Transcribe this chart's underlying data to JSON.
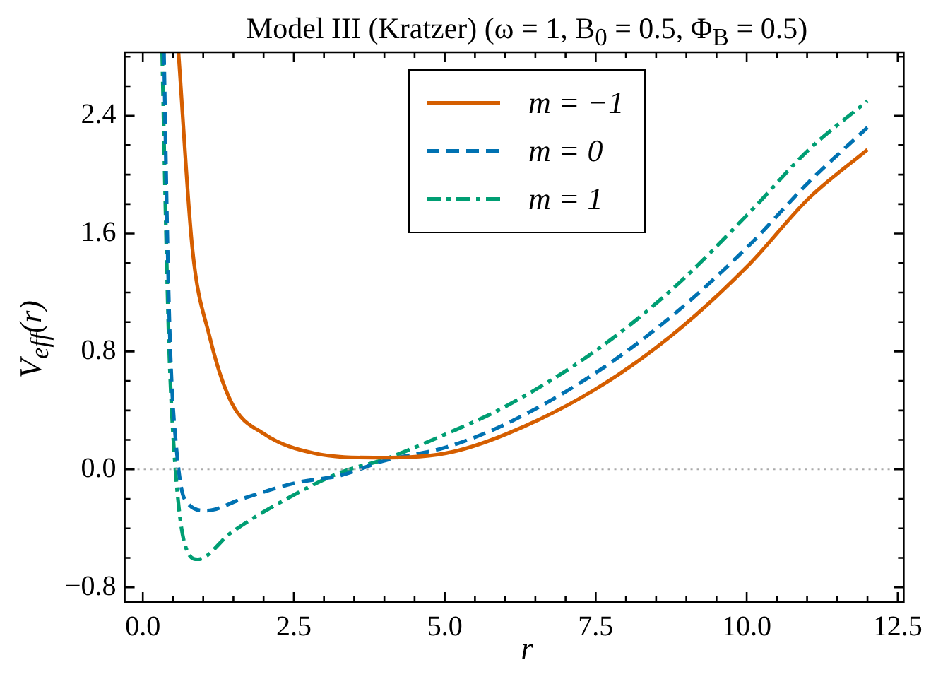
{
  "chart_data": {
    "type": "line",
    "title": "Model III (Kratzer) (ω = 1, B$_{0}$ = 0.5, Φ$_{B}$ = 0.5)",
    "xlabel": "r",
    "ylabel": "V$_{eff}$(r)",
    "xlim": [
      -0.3,
      12.6
    ],
    "ylim": [
      -0.9,
      2.83
    ],
    "xticks": [
      {
        "value": 0,
        "label": "0.0"
      },
      {
        "value": 0.5,
        "label": null
      },
      {
        "value": 1,
        "label": null
      },
      {
        "value": 1.5,
        "label": null
      },
      {
        "value": 2,
        "label": null
      },
      {
        "value": 2.5,
        "label": "2.5"
      },
      {
        "value": 3,
        "label": null
      },
      {
        "value": 3.5,
        "label": null
      },
      {
        "value": 4,
        "label": null
      },
      {
        "value": 4.5,
        "label": null
      },
      {
        "value": 5,
        "label": "5.0"
      },
      {
        "value": 5.5,
        "label": null
      },
      {
        "value": 6,
        "label": null
      },
      {
        "value": 6.5,
        "label": null
      },
      {
        "value": 7,
        "label": null
      },
      {
        "value": 7.5,
        "label": "7.5"
      },
      {
        "value": 8,
        "label": null
      },
      {
        "value": 8.5,
        "label": null
      },
      {
        "value": 9,
        "label": null
      },
      {
        "value": 9.5,
        "label": null
      },
      {
        "value": 10,
        "label": "10.0"
      },
      {
        "value": 10.5,
        "label": null
      },
      {
        "value": 11,
        "label": null
      },
      {
        "value": 11.5,
        "label": null
      },
      {
        "value": 12,
        "label": null
      },
      {
        "value": 12.5,
        "label": "12.5"
      }
    ],
    "yticks": [
      {
        "value": -0.8,
        "label": "−0.8"
      },
      {
        "value": -0.6,
        "label": null
      },
      {
        "value": -0.4,
        "label": null
      },
      {
        "value": -0.2,
        "label": null
      },
      {
        "value": 0,
        "label": "0.0"
      },
      {
        "value": 0.2,
        "label": null
      },
      {
        "value": 0.4,
        "label": null
      },
      {
        "value": 0.6,
        "label": null
      },
      {
        "value": 0.8,
        "label": "0.8"
      },
      {
        "value": 1,
        "label": null
      },
      {
        "value": 1.2,
        "label": null
      },
      {
        "value": 1.4,
        "label": null
      },
      {
        "value": 1.6,
        "label": "1.6"
      },
      {
        "value": 1.8,
        "label": null
      },
      {
        "value": 2,
        "label": null
      },
      {
        "value": 2.2,
        "label": null
      },
      {
        "value": 2.4,
        "label": "2.4"
      },
      {
        "value": 2.6,
        "label": null
      },
      {
        "value": 2.8,
        "label": null
      }
    ],
    "grid": false,
    "legend": "top",
    "marker": "none",
    "ref_lines": [
      {
        "axis": "y",
        "value": 0,
        "color": "#aaaaaa",
        "line_style": "dotted"
      }
    ],
    "series": [
      {
        "name": "m = −1",
        "color": "#d55e00",
        "line_style": "solid",
        "x": [
          0.59,
          0.82,
          1.1,
          1.46,
          2.01,
          2.83,
          3.83,
          5.02,
          6.02,
          7.48,
          8.76,
          10.04,
          11.03,
          12.0
        ],
        "values": [
          2.83,
          1.5,
          0.91,
          0.46,
          0.24,
          0.11,
          0.08,
          0.11,
          0.24,
          0.54,
          0.91,
          1.39,
          1.84,
          2.17
        ]
      },
      {
        "name": "m = 0",
        "color": "#0072b2",
        "line_style": "dashed",
        "x": [
          0.35,
          0.41,
          0.46,
          0.55,
          0.69,
          1.05,
          1.64,
          2.55,
          3.28,
          4.01,
          5.02,
          6.02,
          7.48,
          8.76,
          10.04,
          11.03,
          12.0
        ],
        "values": [
          2.83,
          1.5,
          0.76,
          0.17,
          -0.2,
          -0.28,
          -0.2,
          -0.09,
          -0.04,
          0.06,
          0.15,
          0.31,
          0.65,
          1.04,
          1.52,
          1.95,
          2.32
        ]
      },
      {
        "name": "m = 1",
        "color": "#009e73",
        "line_style": "dashdot",
        "x": [
          0.32,
          0.39,
          0.44,
          0.54,
          0.69,
          0.91,
          1.46,
          2.38,
          3.28,
          4.01,
          5.02,
          6.02,
          7.48,
          8.76,
          10.04,
          11.03,
          12.0
        ],
        "values": [
          2.83,
          1.5,
          0.76,
          0.0,
          -0.5,
          -0.61,
          -0.43,
          -0.2,
          -0.02,
          0.07,
          0.24,
          0.43,
          0.8,
          1.22,
          1.74,
          2.17,
          2.5
        ]
      }
    ]
  }
}
